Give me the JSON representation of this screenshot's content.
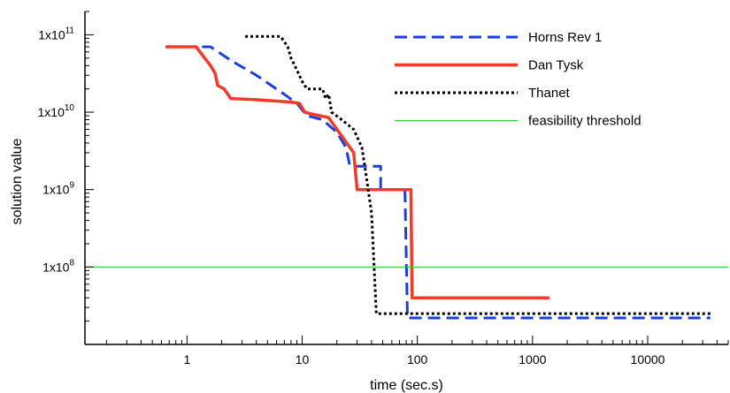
{
  "chart_data": {
    "type": "line",
    "title": "",
    "xlabel": "time (sec.s)",
    "ylabel": "solution value",
    "x_scale": "log",
    "y_scale": "log",
    "xlim": [
      0.13,
      50000
    ],
    "ylim": [
      10000000,
      200000000000
    ],
    "grid": false,
    "legend_position": "top-right",
    "x_tick_labels": [
      {
        "value": 1,
        "label": "1"
      },
      {
        "value": 10,
        "label": "10"
      },
      {
        "value": 100,
        "label": "100"
      },
      {
        "value": 1000,
        "label": "1000"
      },
      {
        "value": 10000,
        "label": "10000"
      }
    ],
    "y_tick_labels": [
      {
        "value": 100000000000,
        "base": "1x10",
        "exp": "11"
      },
      {
        "value": 10000000000,
        "base": "1x10",
        "exp": "10"
      },
      {
        "value": 1000000000,
        "base": "1x10",
        "exp": "9"
      },
      {
        "value": 100000000,
        "base": "1x10",
        "exp": "8"
      }
    ],
    "series": [
      {
        "name": "Horns Rev 1",
        "color": "#1a3fe0",
        "style": "dashed",
        "points": [
          [
            1.35,
            70000000000
          ],
          [
            1.6,
            70000000000
          ],
          [
            2.5,
            45000000000
          ],
          [
            4,
            30000000000
          ],
          [
            7,
            17000000000
          ],
          [
            9,
            13000000000
          ],
          [
            11,
            9000000000
          ],
          [
            15,
            8000000000
          ],
          [
            20,
            5500000000
          ],
          [
            24,
            3500000000
          ],
          [
            26,
            2000000000
          ],
          [
            48,
            2000000000
          ],
          [
            48,
            1000000000
          ],
          [
            78,
            1000000000
          ],
          [
            82,
            22000000
          ],
          [
            35000,
            22000000
          ]
        ]
      },
      {
        "name": "Dan Tysk",
        "color": "#ee3b2a",
        "style": "solid",
        "points": [
          [
            0.65,
            70000000000
          ],
          [
            1.2,
            70000000000
          ],
          [
            1.6,
            40000000000
          ],
          [
            1.75,
            32000000000
          ],
          [
            1.85,
            22000000000
          ],
          [
            2.1,
            20000000000
          ],
          [
            2.4,
            15000000000
          ],
          [
            4,
            14500000000
          ],
          [
            8,
            13500000000
          ],
          [
            9.5,
            13000000000
          ],
          [
            10.5,
            10000000000
          ],
          [
            12,
            9500000000
          ],
          [
            17,
            8500000000
          ],
          [
            20,
            6000000000
          ],
          [
            28,
            3000000000
          ],
          [
            30,
            1000000000
          ],
          [
            88,
            1000000000
          ],
          [
            90,
            40000000
          ],
          [
            1400,
            40000000
          ]
        ]
      },
      {
        "name": "Thanet",
        "color": "#000000",
        "style": "dotted",
        "points": [
          [
            3.2,
            95000000000
          ],
          [
            6.5,
            95000000000
          ],
          [
            7.5,
            70000000000
          ],
          [
            8,
            50000000000
          ],
          [
            9,
            35000000000
          ],
          [
            10,
            25000000000
          ],
          [
            11,
            20000000000
          ],
          [
            15,
            20000000000
          ],
          [
            16,
            15000000000
          ],
          [
            17,
            17000000000
          ],
          [
            18,
            10000000000
          ],
          [
            22,
            8000000000
          ],
          [
            28,
            6000000000
          ],
          [
            33,
            3500000000
          ],
          [
            36,
            1500000000
          ],
          [
            40,
            500000000
          ],
          [
            44,
            25000000
          ],
          [
            35000,
            25000000
          ]
        ]
      },
      {
        "name": "feasibility threshold",
        "color": "#33cc33",
        "style": "thin",
        "points": [
          [
            0.13,
            100000000
          ],
          [
            50000,
            100000000
          ]
        ]
      }
    ]
  }
}
